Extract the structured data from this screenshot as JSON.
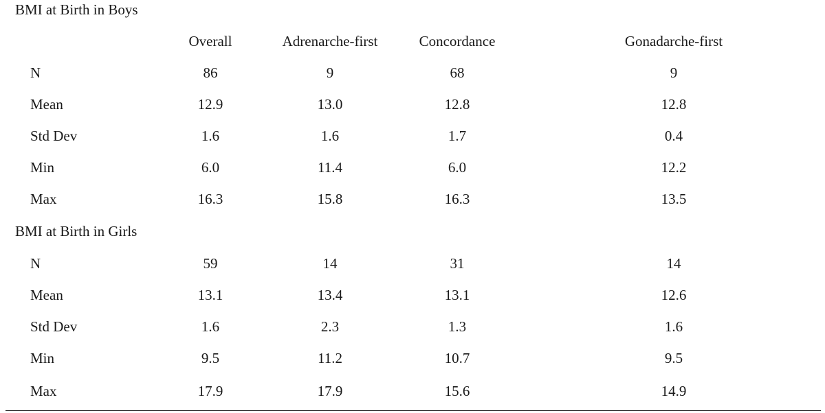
{
  "sections": [
    {
      "title": "BMI at Birth in Boys",
      "rows": [
        {
          "label": "N",
          "values": [
            "86",
            "9",
            "68",
            "9"
          ]
        },
        {
          "label": "Mean",
          "values": [
            "12.9",
            "13.0",
            "12.8",
            "12.8"
          ]
        },
        {
          "label": "Std Dev",
          "values": [
            "1.6",
            "1.6",
            "1.7",
            "0.4"
          ]
        },
        {
          "label": "Min",
          "values": [
            "6.0",
            "11.4",
            "6.0",
            "12.2"
          ]
        },
        {
          "label": "Max",
          "values": [
            "16.3",
            "15.8",
            "16.3",
            "13.5"
          ]
        }
      ]
    },
    {
      "title": "BMI at Birth in Girls",
      "rows": [
        {
          "label": "N",
          "values": [
            "59",
            "14",
            "31",
            "14"
          ]
        },
        {
          "label": "Mean",
          "values": [
            "13.1",
            "13.4",
            "13.1",
            "12.6"
          ]
        },
        {
          "label": "Std Dev",
          "values": [
            "1.6",
            "2.3",
            "1.3",
            "1.6"
          ]
        },
        {
          "label": "Min",
          "values": [
            "9.5",
            "11.2",
            "10.7",
            "9.5"
          ]
        },
        {
          "label": "Max",
          "values": [
            "17.9",
            "17.9",
            "15.6",
            "14.9"
          ]
        }
      ]
    }
  ],
  "columns": [
    "Overall",
    "Adrenarche-first",
    "Concordance",
    "Gonadarche-first"
  ]
}
